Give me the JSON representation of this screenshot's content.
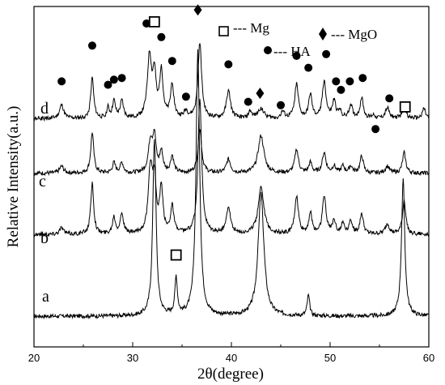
{
  "chart_data": {
    "type": "line",
    "xlabel": "2θ(degree)",
    "ylabel": "Relative Intensity(a.u.)",
    "xlim": [
      20,
      60
    ],
    "xticks": [
      "20",
      "30",
      "40",
      "50",
      "60"
    ],
    "y_tick_labels": false,
    "legend": [
      {
        "marker": "open-square",
        "label": "--- Mg"
      },
      {
        "marker": "filled-diamond",
        "label": "--- MgO"
      },
      {
        "marker": "filled-circle",
        "label": "--- HA"
      }
    ],
    "series": [
      {
        "name": "a",
        "baseline": 0.09,
        "peaks": [
          {
            "x": 32.2,
            "h": 0.52,
            "w": 0.2
          },
          {
            "x": 34.4,
            "h": 0.11,
            "w": 0.15
          },
          {
            "x": 36.6,
            "h": 0.78,
            "w": 0.22
          },
          {
            "x": 43.0,
            "h": 0.36,
            "w": 0.35
          },
          {
            "x": 47.8,
            "h": 0.06,
            "w": 0.15
          },
          {
            "x": 57.4,
            "h": 0.4,
            "w": 0.2
          }
        ],
        "markers": [
          {
            "type": "open-square",
            "x": 34.4,
            "y": 0.27
          }
        ]
      },
      {
        "name": "b",
        "baseline": 0.33,
        "peaks": [
          {
            "x": 22.8,
            "h": 0.02,
            "w": 0.25
          },
          {
            "x": 25.9,
            "h": 0.15,
            "w": 0.18
          },
          {
            "x": 28.1,
            "h": 0.05,
            "w": 0.18
          },
          {
            "x": 28.9,
            "h": 0.06,
            "w": 0.2
          },
          {
            "x": 31.8,
            "h": 0.19,
            "w": 0.25
          },
          {
            "x": 32.2,
            "h": 0.14,
            "w": 0.2
          },
          {
            "x": 32.9,
            "h": 0.13,
            "w": 0.2
          },
          {
            "x": 34.0,
            "h": 0.08,
            "w": 0.2
          },
          {
            "x": 36.8,
            "h": 0.4,
            "w": 0.22
          },
          {
            "x": 39.7,
            "h": 0.08,
            "w": 0.25
          },
          {
            "x": 43.0,
            "h": 0.14,
            "w": 0.35
          },
          {
            "x": 46.6,
            "h": 0.11,
            "w": 0.22
          },
          {
            "x": 48.0,
            "h": 0.06,
            "w": 0.2
          },
          {
            "x": 49.4,
            "h": 0.11,
            "w": 0.22
          },
          {
            "x": 50.4,
            "h": 0.04,
            "w": 0.2
          },
          {
            "x": 51.3,
            "h": 0.03,
            "w": 0.2
          },
          {
            "x": 52.1,
            "h": 0.04,
            "w": 0.2
          },
          {
            "x": 53.2,
            "h": 0.06,
            "w": 0.2
          },
          {
            "x": 55.8,
            "h": 0.03,
            "w": 0.25
          },
          {
            "x": 57.5,
            "h": 0.1,
            "w": 0.2
          }
        ]
      },
      {
        "name": "c",
        "baseline": 0.51,
        "peaks": [
          {
            "x": 22.8,
            "h": 0.02,
            "w": 0.25
          },
          {
            "x": 25.9,
            "h": 0.12,
            "w": 0.18
          },
          {
            "x": 28.1,
            "h": 0.03,
            "w": 0.18
          },
          {
            "x": 28.9,
            "h": 0.03,
            "w": 0.2
          },
          {
            "x": 31.8,
            "h": 0.09,
            "w": 0.25
          },
          {
            "x": 32.2,
            "h": 0.1,
            "w": 0.2
          },
          {
            "x": 32.9,
            "h": 0.06,
            "w": 0.2
          },
          {
            "x": 34.0,
            "h": 0.05,
            "w": 0.2
          },
          {
            "x": 36.8,
            "h": 0.13,
            "w": 0.22
          },
          {
            "x": 39.7,
            "h": 0.04,
            "w": 0.25
          },
          {
            "x": 43.0,
            "h": 0.11,
            "w": 0.35
          },
          {
            "x": 46.6,
            "h": 0.07,
            "w": 0.22
          },
          {
            "x": 48.0,
            "h": 0.03,
            "w": 0.2
          },
          {
            "x": 49.4,
            "h": 0.06,
            "w": 0.22
          },
          {
            "x": 50.4,
            "h": 0.02,
            "w": 0.2
          },
          {
            "x": 51.3,
            "h": 0.02,
            "w": 0.2
          },
          {
            "x": 52.1,
            "h": 0.02,
            "w": 0.2
          },
          {
            "x": 53.2,
            "h": 0.05,
            "w": 0.2
          },
          {
            "x": 55.8,
            "h": 0.02,
            "w": 0.25
          },
          {
            "x": 57.5,
            "h": 0.06,
            "w": 0.2
          }
        ]
      },
      {
        "name": "d",
        "baseline": 0.67,
        "peaks": [
          {
            "x": 22.8,
            "h": 0.04,
            "w": 0.25
          },
          {
            "x": 25.9,
            "h": 0.12,
            "w": 0.18
          },
          {
            "x": 27.5,
            "h": 0.03,
            "w": 0.15
          },
          {
            "x": 28.1,
            "h": 0.05,
            "w": 0.18
          },
          {
            "x": 28.9,
            "h": 0.05,
            "w": 0.2
          },
          {
            "x": 31.7,
            "h": 0.18,
            "w": 0.25
          },
          {
            "x": 32.2,
            "h": 0.12,
            "w": 0.2
          },
          {
            "x": 32.9,
            "h": 0.14,
            "w": 0.2
          },
          {
            "x": 34.0,
            "h": 0.1,
            "w": 0.2
          },
          {
            "x": 35.4,
            "h": 0.02,
            "w": 0.2
          },
          {
            "x": 36.8,
            "h": 0.22,
            "w": 0.22
          },
          {
            "x": 39.7,
            "h": 0.08,
            "w": 0.25
          },
          {
            "x": 41.9,
            "h": 0.02,
            "w": 0.2
          },
          {
            "x": 43.0,
            "h": 0.03,
            "w": 0.35
          },
          {
            "x": 45.2,
            "h": 0.02,
            "w": 0.2
          },
          {
            "x": 46.6,
            "h": 0.1,
            "w": 0.22
          },
          {
            "x": 48.0,
            "h": 0.07,
            "w": 0.2
          },
          {
            "x": 49.4,
            "h": 0.11,
            "w": 0.22
          },
          {
            "x": 50.4,
            "h": 0.05,
            "w": 0.2
          },
          {
            "x": 51.0,
            "h": 0.02,
            "w": 0.2
          },
          {
            "x": 52.1,
            "h": 0.04,
            "w": 0.2
          },
          {
            "x": 53.2,
            "h": 0.06,
            "w": 0.2
          },
          {
            "x": 54.4,
            "h": 0.01,
            "w": 0.2
          },
          {
            "x": 55.8,
            "h": 0.03,
            "w": 0.25
          },
          {
            "x": 57.5,
            "h": 0.04,
            "w": 0.2
          },
          {
            "x": 59.5,
            "h": 0.03,
            "w": 0.2
          }
        ],
        "markers": [
          {
            "type": "filled-circle",
            "x": 22.8,
            "y": 0.78
          },
          {
            "type": "filled-circle",
            "x": 25.9,
            "y": 0.885
          },
          {
            "type": "filled-circle",
            "x": 27.5,
            "y": 0.77
          },
          {
            "type": "filled-circle",
            "x": 28.1,
            "y": 0.785
          },
          {
            "type": "filled-circle",
            "x": 28.9,
            "y": 0.79
          },
          {
            "type": "filled-circle",
            "x": 31.4,
            "y": 0.95
          },
          {
            "type": "open-square",
            "x": 32.2,
            "y": 0.955
          },
          {
            "type": "filled-circle",
            "x": 32.9,
            "y": 0.91
          },
          {
            "type": "filled-circle",
            "x": 34.0,
            "y": 0.84
          },
          {
            "type": "filled-circle",
            "x": 35.4,
            "y": 0.735
          },
          {
            "type": "filled-diamond",
            "x": 36.6,
            "y": 0.99
          },
          {
            "type": "filled-circle",
            "x": 39.7,
            "y": 0.83
          },
          {
            "type": "filled-circle",
            "x": 41.7,
            "y": 0.72
          },
          {
            "type": "filled-diamond",
            "x": 42.9,
            "y": 0.745
          },
          {
            "type": "filled-circle",
            "x": 45.0,
            "y": 0.71
          },
          {
            "type": "filled-circle",
            "x": 46.6,
            "y": 0.855
          },
          {
            "type": "filled-circle",
            "x": 47.8,
            "y": 0.82
          },
          {
            "type": "filled-circle",
            "x": 49.6,
            "y": 0.86
          },
          {
            "type": "filled-circle",
            "x": 50.6,
            "y": 0.78
          },
          {
            "type": "filled-circle",
            "x": 51.1,
            "y": 0.755
          },
          {
            "type": "filled-circle",
            "x": 52.0,
            "y": 0.78
          },
          {
            "type": "filled-circle",
            "x": 53.3,
            "y": 0.79
          },
          {
            "type": "filled-circle",
            "x": 54.6,
            "y": 0.64
          },
          {
            "type": "filled-circle",
            "x": 56.0,
            "y": 0.73
          },
          {
            "type": "open-square",
            "x": 57.6,
            "y": 0.705
          }
        ]
      }
    ]
  }
}
